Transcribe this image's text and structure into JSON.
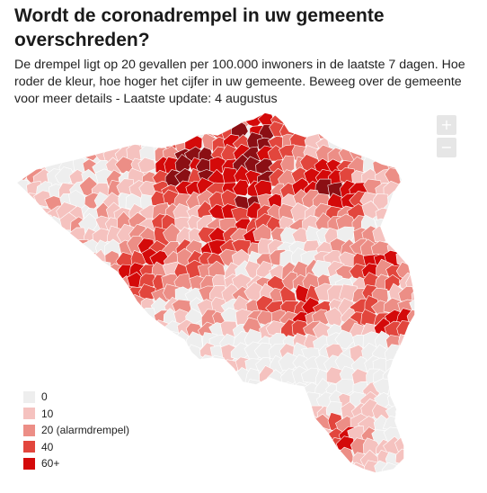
{
  "title": "Wordt de coronadrempel in uw gemeente overschreden?",
  "subtitle": "De drempel ligt op 20 gevallen per 100.000 inwoners in de laatste 7 dagen. Hoe roder de kleur, hoe hoger het cijfer in uw gemeente. Beweeg over de gemeente voor meer details - Laatste update: 4 augustus",
  "controls": {
    "zoom_in_label": "+",
    "zoom_out_label": "−"
  },
  "legend": [
    {
      "label": "0",
      "color": "#eeeeee"
    },
    {
      "label": "10",
      "color": "#f5c2bf"
    },
    {
      "label": "20 (alarmdrempel)",
      "color": "#ec8e86"
    },
    {
      "label": "40",
      "color": "#e2463d"
    },
    {
      "label": "60+",
      "color": "#d40a0a"
    }
  ],
  "map": {
    "region": "Belgium",
    "unit": "gemeente",
    "hotspot_color": "#8b0f14",
    "stroke_color": "#ffffff"
  }
}
